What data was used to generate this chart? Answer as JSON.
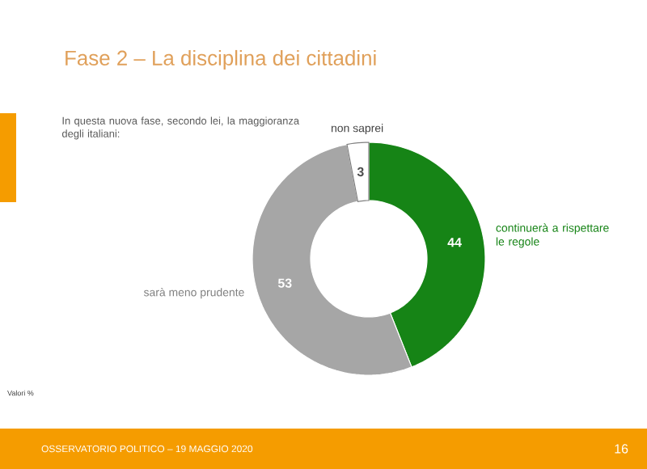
{
  "chart_data": {
    "type": "donut",
    "title": "Fase 2 – La disciplina dei cittadini",
    "subtitle": "In questa nuova fase, secondo lei, la maggioranza degli italiani:",
    "categories": [
      "continuerà a rispettare le regole",
      "sarà meno prudente",
      "non saprei"
    ],
    "values": [
      44,
      53,
      3
    ],
    "colors": [
      "#168416",
      "#a6a6a6",
      "#ffffff"
    ],
    "data_labels": true,
    "annotations": [
      "Valori %",
      "OSSERVATORIO POLITICO – 19 MAGGIO 2020",
      "16"
    ]
  }
}
